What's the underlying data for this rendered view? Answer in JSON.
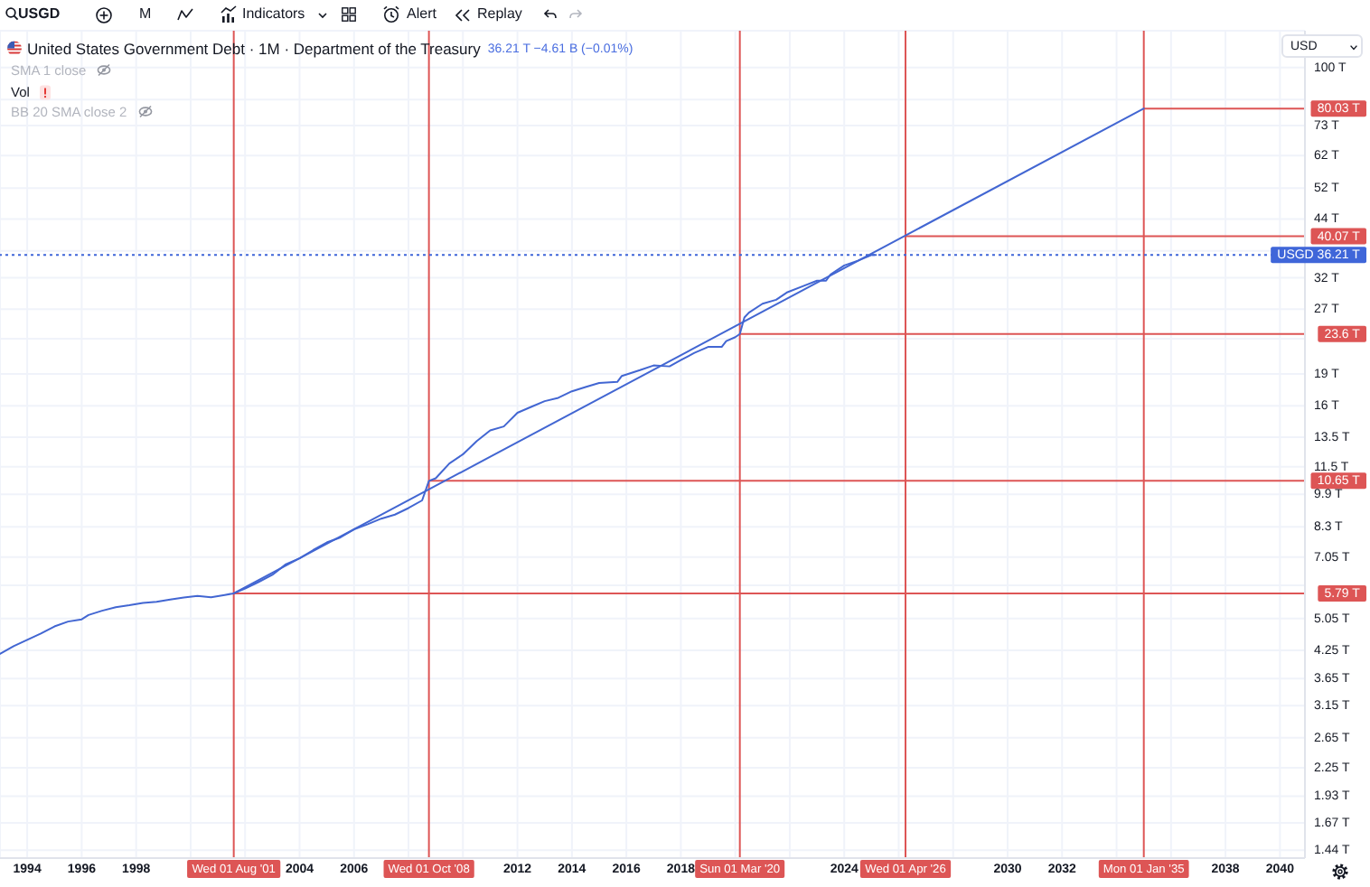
{
  "chart_data": {
    "type": "line",
    "title": "United States Government Debt · 1M · Department of the Treasury",
    "subtitle": "36.21 T −4.61 B (−0.01%)",
    "annotations": [
      "USGD",
      "M",
      "Indicators",
      "Alert",
      "Replay",
      "SMA 1 close",
      "Vol",
      "BB 20 SMA close 2",
      "USD"
    ],
    "x": [
      "1993-01",
      "1993-07",
      "1994-01",
      "1994-07",
      "1995-01",
      "1995-07",
      "1996-01",
      "1996-04",
      "1996-10",
      "1997-04",
      "1997-10",
      "1998-04",
      "1998-10",
      "1999-04",
      "1999-10",
      "2000-04",
      "2000-10",
      "2001-04",
      "2001-08",
      "2002-01",
      "2002-07",
      "2003-01",
      "2003-07",
      "2004-01",
      "2004-07",
      "2005-01",
      "2005-07",
      "2006-01",
      "2006-07",
      "2007-01",
      "2007-07",
      "2008-01",
      "2008-07",
      "2008-10",
      "2009-01",
      "2009-07",
      "2010-01",
      "2010-07",
      "2011-01",
      "2011-07",
      "2012-01",
      "2012-07",
      "2013-01",
      "2013-07",
      "2014-01",
      "2014-07",
      "2015-01",
      "2015-09",
      "2015-11",
      "2016-07",
      "2017-01",
      "2017-08",
      "2018-01",
      "2018-07",
      "2019-01",
      "2019-07",
      "2019-09",
      "2020-01",
      "2020-03",
      "2020-05",
      "2020-07",
      "2021-01",
      "2021-07",
      "2021-12",
      "2022-07",
      "2023-01",
      "2023-05",
      "2023-07",
      "2024-01",
      "2024-07",
      "2025-01",
      "2025-03"
    ],
    "series": [
      {
        "color": "#4266d2",
        "values": [
          4.17,
          4.35,
          4.5,
          4.66,
          4.84,
          4.97,
          5.03,
          5.15,
          5.27,
          5.37,
          5.43,
          5.5,
          5.53,
          5.6,
          5.66,
          5.71,
          5.67,
          5.74,
          5.79,
          5.94,
          6.16,
          6.4,
          6.78,
          7.0,
          7.32,
          7.63,
          7.84,
          8.19,
          8.42,
          8.68,
          8.87,
          9.19,
          9.58,
          10.65,
          10.8,
          11.7,
          12.3,
          13.2,
          14.0,
          14.3,
          15.4,
          15.9,
          16.4,
          16.7,
          17.3,
          17.7,
          18.1,
          18.2,
          18.8,
          19.4,
          19.9,
          19.8,
          20.5,
          21.3,
          22.0,
          22.0,
          22.7,
          23.2,
          23.6,
          25.8,
          26.5,
          27.8,
          28.4,
          29.6,
          30.6,
          31.5,
          31.5,
          32.6,
          34.2,
          35.1,
          36.2,
          36.21
        ]
      },
      {
        "type": "line",
        "color": "#4266d2",
        "x": [
          "2001-08-01",
          "2035-01-01"
        ],
        "values": [
          5.79,
          80.03
        ]
      }
    ],
    "xlim": [
      "1993-01",
      "2040-12"
    ],
    "xticks": [
      "1994",
      "1996",
      "1998",
      {
        "value": "2000",
        "label": null
      },
      {
        "value": "2002",
        "label": null
      },
      "2004",
      "2006",
      {
        "value": "2008",
        "label": null
      },
      {
        "value": "2010",
        "label": null
      },
      "2012",
      "2014",
      "2016",
      "2018",
      {
        "value": "2020",
        "label": null
      },
      {
        "value": "2022",
        "label": null
      },
      "2024",
      {
        "value": "2026",
        "label": null
      },
      {
        "value": "2028",
        "label": null
      },
      "2030",
      "2032",
      {
        "value": "2034",
        "label": null
      },
      {
        "value": "2036",
        "label": null
      },
      "2038",
      "2040"
    ],
    "ylim": [
      1.38,
      122
    ],
    "yticks": [
      {
        "value": 1.44,
        "label": "1.44 T"
      },
      {
        "value": 1.67,
        "label": "1.67 T"
      },
      {
        "value": 1.93,
        "label": "1.93 T"
      },
      {
        "value": 2.25,
        "label": "2.25 T"
      },
      {
        "value": 2.65,
        "label": "2.65 T"
      },
      {
        "value": 3.15,
        "label": "3.15 T"
      },
      {
        "value": 3.65,
        "label": "3.65 T"
      },
      {
        "value": 4.25,
        "label": "4.25 T"
      },
      {
        "value": 5.05,
        "label": "5.05 T"
      },
      {
        "value": 6.05,
        "label": null
      },
      {
        "value": 7.05,
        "label": "7.05 T"
      },
      {
        "value": 8.3,
        "label": "8.3 T"
      },
      {
        "value": 9.9,
        "label": "9.9 T"
      },
      {
        "value": 11.5,
        "label": "11.5 T"
      },
      {
        "value": 13.5,
        "label": "13.5 T"
      },
      {
        "value": 16,
        "label": "16 T"
      },
      {
        "value": 19,
        "label": "19 T"
      },
      {
        "value": 23,
        "label": null
      },
      {
        "value": 27,
        "label": "27 T"
      },
      {
        "value": 32,
        "label": "32 T"
      },
      {
        "value": 37,
        "label": null
      },
      {
        "value": 44,
        "label": "44 T"
      },
      {
        "value": 52,
        "label": "52 T"
      },
      {
        "value": 62,
        "label": "62 T"
      },
      {
        "value": 73,
        "label": "73 T"
      },
      {
        "value": 84,
        "label": null
      },
      {
        "value": 100,
        "label": "100 T"
      }
    ],
    "log": true,
    "grid": true,
    "marker": "none",
    "line_style": "solid",
    "ref_lines": [
      {
        "axis": "x",
        "value": "2001-08-01",
        "label": "Wed 01 Aug '01",
        "color": "#dd5555"
      },
      {
        "axis": "x",
        "value": "2008-10-01",
        "label": "Wed 01 Oct '08",
        "color": "#dd5555"
      },
      {
        "axis": "x",
        "value": "2020-03-01",
        "label": "Sun 01 Mar '20",
        "color": "#dd5555"
      },
      {
        "axis": "x",
        "value": "2026-04-01",
        "label": "Wed 01 Apr '26",
        "color": "#dd5555"
      },
      {
        "axis": "x",
        "value": "2035-01-01",
        "label": "Mon 01 Jan '35",
        "color": "#dd5555"
      },
      {
        "axis": "y",
        "value": 5.79,
        "label": "5.79 T",
        "color": "#dd5555"
      },
      {
        "axis": "y",
        "value": 10.65,
        "label": "10.65 T",
        "color": "#dd5555"
      },
      {
        "axis": "y",
        "value": 23.6,
        "label": "23.6 T",
        "color": "#dd5555"
      },
      {
        "axis": "y",
        "value": 40.07,
        "label": "40.07 T",
        "color": "#dd5555"
      },
      {
        "axis": "y",
        "value": 80.03,
        "label": "80.03 T",
        "color": "#dd5555"
      },
      {
        "axis": "y",
        "value": 36.21,
        "label": "USGD 36.21 T",
        "color": "#3f66d9",
        "line_style": "dotted"
      }
    ]
  }
}
